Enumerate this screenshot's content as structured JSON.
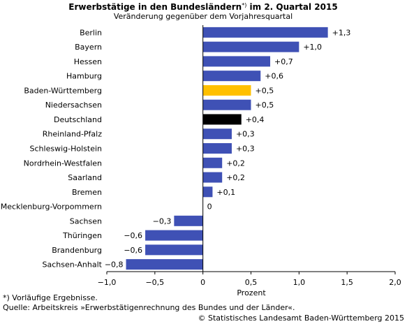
{
  "chart_data": {
    "type": "barh",
    "title": [
      "Erwerbstätige in den Bundesländern",
      "*)",
      " im 2. Quartal 2015"
    ],
    "subtitle": "Veränderung gegenüber dem Vorjahresquartal",
    "x_label": "Prozent",
    "categories": [
      "Berlin",
      "Bayern",
      "Hessen",
      "Hamburg",
      "Baden-Württemberg",
      "Niedersachsen",
      "Deutschland",
      "Rheinland-Pfalz",
      "Schleswig-Holstein",
      "Nordrhein-Westfalen",
      "Saarland",
      "Bremen",
      "Mecklenburg-Vorpommern",
      "Sachsen",
      "Thüringen",
      "Brandenburg",
      "Sachsen-Anhalt"
    ],
    "values": [
      1.3,
      1.0,
      0.7,
      0.6,
      0.5,
      0.5,
      0.4,
      0.3,
      0.3,
      0.2,
      0.2,
      0.1,
      0,
      -0.3,
      -0.6,
      -0.6,
      -0.8
    ],
    "value_labels": [
      "+1,3",
      "+1,0",
      "+0,7",
      "+0,6",
      "+0,5",
      "+0,5",
      "+0,4",
      "+0,3",
      "+0,3",
      "+0,2",
      "+0,2",
      "+0,1",
      "0",
      "−0,3",
      "−0,6",
      "−0,6",
      "−0,8"
    ],
    "colors": [
      "#3f51b5",
      "#3f51b5",
      "#3f51b5",
      "#3f51b5",
      "#ffc000",
      "#3f51b5",
      "#000000",
      "#3f51b5",
      "#3f51b5",
      "#3f51b5",
      "#3f51b5",
      "#3f51b5",
      "#3f51b5",
      "#3f51b5",
      "#3f51b5",
      "#3f51b5",
      "#3f51b5"
    ],
    "xlim": [
      -1.0,
      2.0
    ],
    "xticks": [
      {
        "value": -1.0,
        "label": "−1,0"
      },
      {
        "value": -0.5,
        "label": "−0,5"
      },
      0,
      {
        "value": 0.5,
        "label": "0,5"
      },
      {
        "value": 1.0,
        "label": "1,0"
      },
      {
        "value": 1.5,
        "label": "1,5"
      },
      {
        "value": 2.0,
        "label": "2,0"
      }
    ],
    "grid": false,
    "footnotes": [
      "*) Vorläufige Ergebnisse.",
      "Quelle: Arbeitskreis »Erwerbstätigenrechnung des Bundes und der Länder«."
    ],
    "copyright": "© Statistisches Landesamt Baden-Württemberg 2015"
  }
}
